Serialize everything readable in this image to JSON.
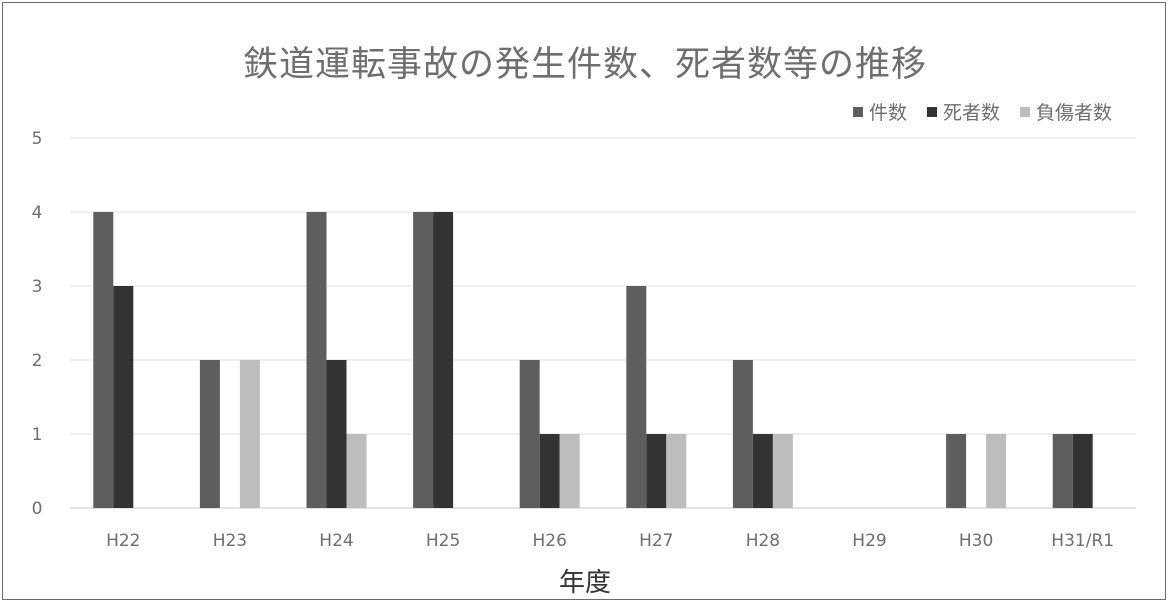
{
  "chart_data": {
    "type": "bar",
    "title": "鉄道運転事故の発生件数、死者数等の推移",
    "xlabel": "年度",
    "ylabel": "",
    "ylim": [
      0,
      5
    ],
    "yticks": [
      0,
      1,
      2,
      3,
      4,
      5
    ],
    "grid": true,
    "legend_position": "top-right",
    "categories": [
      "H22",
      "H23",
      "H24",
      "H25",
      "H26",
      "H27",
      "H28",
      "H29",
      "H30",
      "H31/R1"
    ],
    "series": [
      {
        "name": "件数",
        "color": "#5e5e5e",
        "values": [
          4,
          2,
          4,
          4,
          2,
          3,
          2,
          0,
          1,
          1
        ]
      },
      {
        "name": "死者数",
        "color": "#333333",
        "values": [
          3,
          0,
          2,
          4,
          1,
          1,
          1,
          0,
          0,
          1
        ]
      },
      {
        "name": "負傷者数",
        "color": "#bdbdbd",
        "values": [
          0,
          2,
          1,
          0,
          1,
          1,
          1,
          0,
          1,
          0
        ]
      }
    ]
  }
}
